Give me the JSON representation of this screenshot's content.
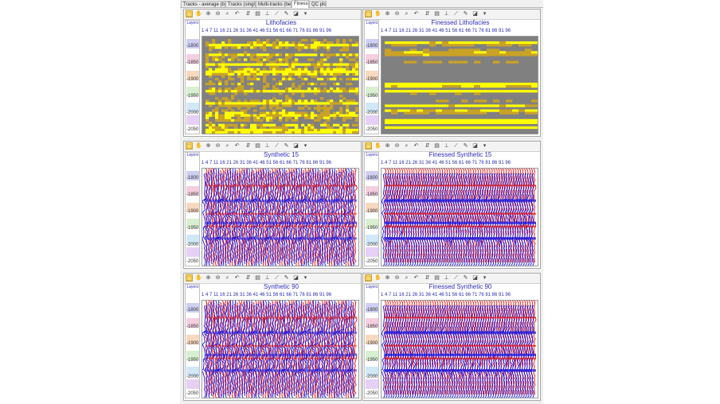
{
  "tabs": [
    {
      "label": "Tracks - average (best)"
    },
    {
      "label": "Tracks (single)"
    },
    {
      "label": "Multi-tracks (best)"
    },
    {
      "label": "Finesse",
      "active": true
    },
    {
      "label": "QC plots"
    }
  ],
  "layers_label": "Layers",
  "trace_numbers": "1  4  7  11  16  21  26  31  36  41  46  51  56  61  66  71  76  81  86  91  96",
  "depth_ticks": [
    "1800",
    "1850",
    "1900",
    "1950",
    "2000",
    "2050"
  ],
  "panels": [
    {
      "title": "Lithofacies",
      "kind": "litho"
    },
    {
      "title": "Finessed Lithofacies",
      "kind": "litho-fine"
    },
    {
      "title": "Synthetic 15",
      "kind": "seis"
    },
    {
      "title": "Finessed Synthetic 15",
      "kind": "seis-fine"
    },
    {
      "title": "Synthetic 90",
      "kind": "seis"
    },
    {
      "title": "Finessed Synthetic 90",
      "kind": "seis-fine"
    }
  ],
  "colors": {
    "litho_bg": "#808080",
    "litho_yellow": "#ffff00",
    "litho_gold": "#c9a227",
    "seis_red": "#e01010",
    "seis_blue": "#1010e0",
    "layer_bands": [
      "#cfcff5",
      "#f5cfe0",
      "#f7d9c0",
      "#d9f0d0",
      "#d0e8f7",
      "#e6d0f5"
    ]
  }
}
